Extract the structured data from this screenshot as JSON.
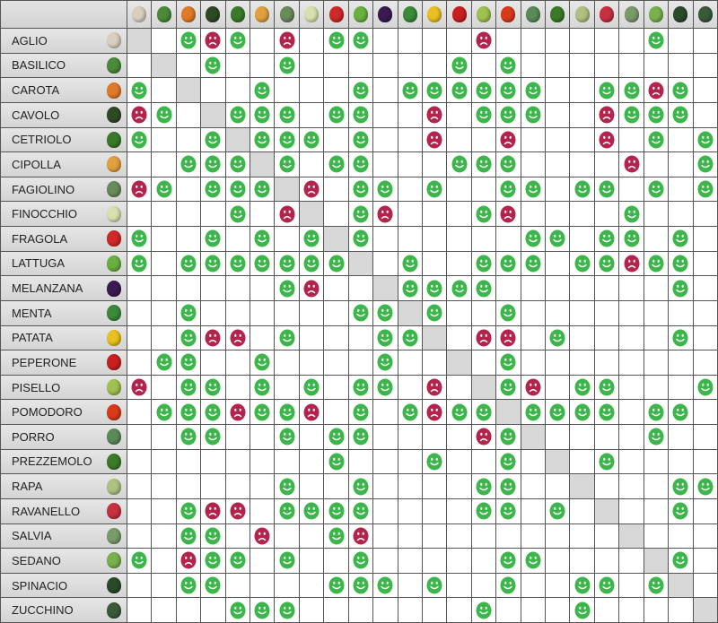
{
  "legend_codes": {
    "G": "good",
    "R": "bad",
    ".": "none",
    "X": "same"
  },
  "colors": {
    "good": "#3cb64a",
    "bad": "#b3234b",
    "diagonal": "#d8d8d8"
  },
  "vegetables": [
    {
      "name": "AGLIO",
      "icon": "garlic-icon",
      "color": "#d9cfbf",
      "row": "X.GRG.R.GG....R......G.."
    },
    {
      "name": "BASILICO",
      "icon": "basil-icon",
      "color": "#4a8a3a",
      "row": ".X.G..G......G.G........"
    },
    {
      "name": "CAROTA",
      "icon": "carrot-icon",
      "color": "#e07a2a",
      "row": "G.X..G...G.GGGGGG..GGRG."
    },
    {
      "name": "CAVOLO",
      "icon": "cabbage-icon",
      "color": "#2d4a25",
      "row": "RG.XGGG.GG..R.GGG..RGGG."
    },
    {
      "name": "CETRIOLO",
      "icon": "cucumber-icon",
      "color": "#3a7a2a",
      "row": "G..GXGGG.G..R..R...R.G.G"
    },
    {
      "name": "CIPOLLA",
      "icon": "onion-icon",
      "color": "#e0a040",
      "row": "..GGGXG.GG...GGG....R..G"
    },
    {
      "name": "FAGIOLINO",
      "icon": "green-bean-icon",
      "color": "#6a8a5a",
      "row": "RG.GGGXR.GG.G..GG.GG.G.G"
    },
    {
      "name": "FINOCCHIO",
      "icon": "fennel-icon",
      "color": "#d8e0b0",
      "row": "....G.RX.GR...GR....G..."
    },
    {
      "name": "FRAGOLA",
      "icon": "strawberry-icon",
      "color": "#d02828",
      "row": "G..G.G.GXG......GG.GG.G."
    },
    {
      "name": "LATTUGA",
      "icon": "lettuce-icon",
      "color": "#6ab040",
      "row": "G.GGGGGGGX.G..GGG.GGRGG."
    },
    {
      "name": "MELANZANA",
      "icon": "eggplant-icon",
      "color": "#3a1a50",
      "row": "......GR..XGGGG.......G."
    },
    {
      "name": "MENTA",
      "icon": "mint-icon",
      "color": "#3a8a3a",
      "row": "..G......GGXG..G........"
    },
    {
      "name": "PATATA",
      "icon": "potato-icon",
      "color": "#e8c020",
      "row": "..GRR.G...GGX.RR.G....G."
    },
    {
      "name": "PEPERONE",
      "icon": "pepper-icon",
      "color": "#c82020",
      "row": ".GG..G....G..X.G........"
    },
    {
      "name": "PISELLO",
      "icon": "pea-icon",
      "color": "#a0c050",
      "row": "R.GG.G.G.GG.R.XGR.GG...G"
    },
    {
      "name": "POMODORO",
      "icon": "tomato-icon",
      "color": "#d83a1a",
      "row": ".GGGRGGR.G.GRGGXGGGG.GG."
    },
    {
      "name": "PORRO",
      "icon": "leek-icon",
      "color": "#5a8a5a",
      "row": "..GG..G.GG....RGX....G.."
    },
    {
      "name": "PREZZEMOLO",
      "icon": "parsley-icon",
      "color": "#3a7a2a",
      "row": "........G...G..G.X.G...."
    },
    {
      "name": "RAPA",
      "icon": "turnip-icon",
      "color": "#b0c080",
      "row": "......G..G....GG..X...GG"
    },
    {
      "name": "RAVANELLO",
      "icon": "radish-icon",
      "color": "#c83040",
      "row": "..GRR.GGGG....GG.G.X..G."
    },
    {
      "name": "SALVIA",
      "icon": "sage-icon",
      "color": "#7a9a6a",
      "row": "..GG.R..GR..........X..."
    },
    {
      "name": "SEDANO",
      "icon": "celery-icon",
      "color": "#7ab050",
      "row": "G.RGG.G..G.....GG....XG."
    },
    {
      "name": "SPINACIO",
      "icon": "spinach-icon",
      "color": "#2a4a2a",
      "row": "..GG....GGG.G..G..GG.GX."
    },
    {
      "name": "ZUCCHINO",
      "icon": "zucchini-icon",
      "color": "#3a5a3a",
      "row": "....GGG.......G...G....X"
    }
  ]
}
